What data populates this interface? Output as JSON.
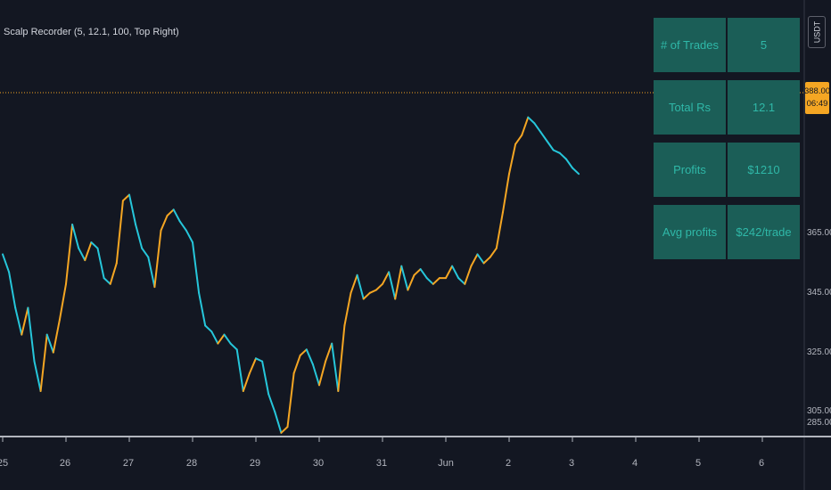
{
  "indicator": {
    "title": "Scalp Recorder (5, 12.1, 100, Top Right)"
  },
  "price_axis": {
    "currency": "USDT",
    "ticks": [
      "365.00",
      "345.00",
      "325.00",
      "305.00",
      "285.00"
    ],
    "current_price": "388.00",
    "countdown": "06:49"
  },
  "time_axis": {
    "ticks": [
      "25",
      "26",
      "27",
      "28",
      "29",
      "30",
      "31",
      "Jun",
      "2",
      "3",
      "4",
      "5",
      "6"
    ]
  },
  "stats_table": {
    "rows": [
      {
        "label": "# of Trades",
        "value": "5"
      },
      {
        "label": "Total Rs",
        "value": "12.1"
      },
      {
        "label": "Profits",
        "value": "$1210"
      },
      {
        "label": "Avg profits",
        "value": "$242/trade"
      }
    ]
  },
  "colors": {
    "background": "#131722",
    "up": "#f5a623",
    "down": "#26c6da",
    "price_line": "#f5a623",
    "table_cell": "#1b5e57",
    "table_text": "#2fb8a8"
  },
  "chart_data": {
    "type": "line",
    "y_ticks": [
      365,
      345,
      325,
      305,
      285
    ],
    "x_ticks": [
      "25",
      "26",
      "27",
      "28",
      "29",
      "30",
      "31",
      "Jun",
      "2",
      "3",
      "4",
      "5",
      "6"
    ],
    "ylim": [
      280,
      410
    ],
    "current_price": 388.0,
    "series": [
      {
        "x": [
          0,
          0.1,
          0.2,
          0.3,
          0.4,
          0.5,
          0.6,
          0.7,
          0.8,
          0.9,
          1.0,
          1.1,
          1.2,
          1.3,
          1.4,
          1.5,
          1.6,
          1.7,
          1.8,
          1.9,
          2.0,
          2.1,
          2.2,
          2.3,
          2.4,
          2.5,
          2.6,
          2.7,
          2.8,
          2.9,
          3.0,
          3.1,
          3.2,
          3.3,
          3.4,
          3.5,
          3.6,
          3.7,
          3.8,
          3.9,
          4.0,
          4.1,
          4.2,
          4.3,
          4.4,
          4.5,
          4.6,
          4.7,
          4.8,
          4.9,
          5.0,
          5.1,
          5.2,
          5.3,
          5.4,
          5.5,
          5.6,
          5.7,
          5.8,
          5.9,
          6.0,
          6.1,
          6.2,
          6.3,
          6.4,
          6.5,
          6.6,
          6.7,
          6.8,
          6.9,
          7.0,
          7.1,
          7.2,
          7.3,
          7.4,
          7.5,
          7.6,
          7.7,
          7.8,
          7.9,
          8.0,
          8.1,
          8.2,
          8.3,
          8.4,
          8.5,
          8.6,
          8.7,
          8.8,
          8.9,
          9.0,
          9.1
        ],
        "values": [
          358,
          352,
          340,
          331,
          340,
          322,
          312,
          331,
          325,
          336,
          348,
          368,
          360,
          356,
          362,
          360,
          350,
          348,
          355,
          376,
          378,
          368,
          360,
          357,
          347,
          366,
          371,
          373,
          369,
          366,
          362,
          345,
          334,
          332,
          328,
          331,
          328,
          326,
          312,
          318,
          323,
          322,
          311,
          305,
          298,
          300,
          318,
          324,
          326,
          321,
          314,
          322,
          328,
          312,
          334,
          345,
          351,
          343,
          345,
          346,
          348,
          352,
          343,
          354,
          346,
          351,
          353,
          350,
          348,
          350,
          350,
          354,
          350,
          348,
          354,
          358,
          355,
          357,
          360,
          372,
          385,
          395,
          398,
          404,
          402,
          399,
          396,
          393,
          392,
          390,
          387,
          385
        ]
      }
    ]
  }
}
